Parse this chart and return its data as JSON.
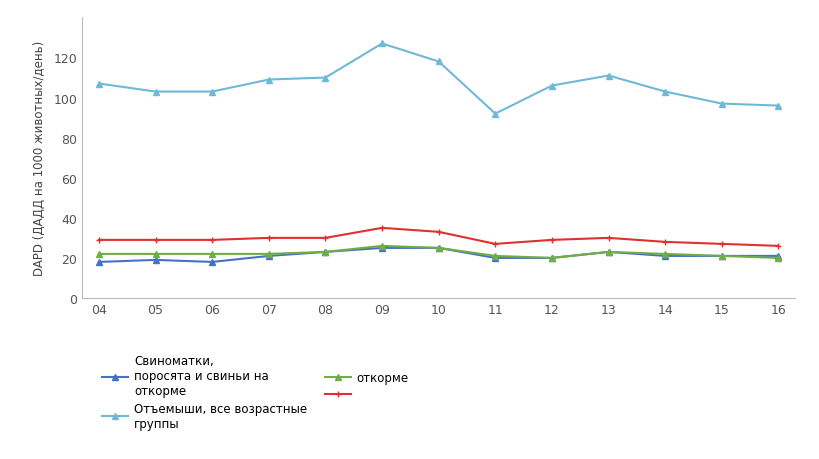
{
  "years": [
    4,
    5,
    6,
    7,
    8,
    9,
    10,
    11,
    12,
    13,
    14,
    15,
    16
  ],
  "x_labels": [
    "04",
    "05",
    "06",
    "07",
    "08",
    "09",
    "10",
    "11",
    "12",
    "13",
    "14",
    "15",
    "16"
  ],
  "series": {
    "sows": {
      "label": "Свиноматки,\nпоросята и свиньи на\nоткорме",
      "values": [
        18,
        19,
        18,
        21,
        23,
        25,
        25,
        20,
        20,
        23,
        21,
        21,
        21
      ],
      "color": "#4472C4",
      "marker": "^"
    },
    "finishers": {
      "label": "Отъемыши, все возрастные\nгруппы",
      "values": [
        107,
        103,
        103,
        109,
        110,
        127,
        118,
        92,
        106,
        111,
        103,
        97,
        96
      ],
      "color": "#70B8D8",
      "marker": "^"
    },
    "growers": {
      "label": "откорме",
      "values": [
        22,
        22,
        22,
        22,
        23,
        26,
        25,
        21,
        20,
        23,
        22,
        21,
        20
      ],
      "color": "#70AD47",
      "marker": "^"
    },
    "piglets": {
      "label": " ",
      "values": [
        29,
        29,
        29,
        30,
        30,
        35,
        33,
        27,
        29,
        30,
        28,
        27,
        26
      ],
      "color": "#E03030",
      "marker": "+"
    }
  },
  "ylabel": "DAPD (ДАДД на 1000 животных/день)",
  "ylim": [
    0,
    140
  ],
  "yticks": [
    0,
    20,
    40,
    60,
    80,
    100,
    120
  ],
  "background_color": "#ffffff",
  "line_width": 1.5,
  "marker_size": 4
}
